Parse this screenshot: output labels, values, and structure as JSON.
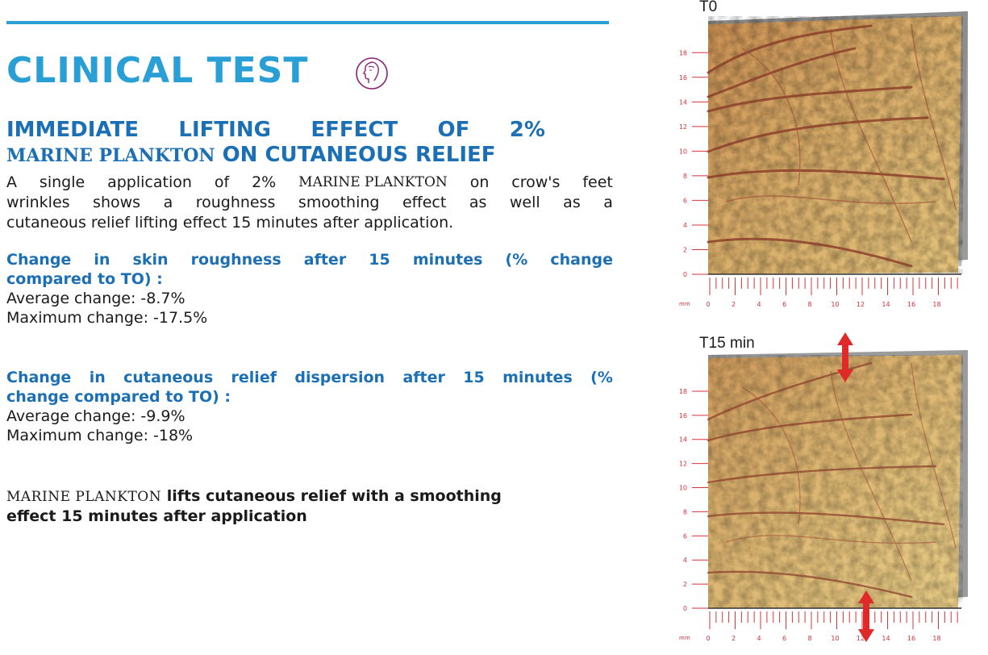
{
  "header": {
    "title": "CLINICAL TEST",
    "icon": "face-profile-icon",
    "accent_color": "#2a9fd6"
  },
  "subtitle": {
    "line1_words": [
      "IMMEDIATE",
      "LIFTING",
      "EFFECT",
      "OF",
      "2%"
    ],
    "line2_brand": "MARINE PLANKTON",
    "line2_rest": "ON CUTANEOUS RELIEF"
  },
  "intro": {
    "line1_words": [
      "A",
      "single",
      "application",
      "of",
      "2%",
      "MARINE PLANKTON",
      "on",
      "crow's",
      "feet"
    ],
    "line2_words": [
      "wrinkles",
      "shows",
      "a",
      "roughness",
      "smoothing",
      "effect",
      "as",
      "well",
      "as",
      "a"
    ],
    "line3": "cutaneous relief lifting effect 15 minutes after application."
  },
  "roughness": {
    "heading_line1_words": [
      "Change",
      "in",
      "skin",
      "roughness",
      "after",
      "15",
      "minutes",
      "(%",
      "change"
    ],
    "heading_line2": "compared to TO) :",
    "average": "Average change: -8.7%",
    "maximum": "Maximum change: -17.5%"
  },
  "dispersion": {
    "heading_line1_words": [
      "Change",
      "in",
      "cutaneous",
      "relief",
      "dispersion",
      "after",
      "15",
      "minutes",
      "(%"
    ],
    "heading_line2": "change compared to TO) :",
    "average": "Average change: -9.9%",
    "maximum": "Maximum change: -18%"
  },
  "conclusion": {
    "brand": "MARINE PLANKTON",
    "line1_rest": "lifts cutaneous relief with a smoothing",
    "line2": "effect 15 minutes after application"
  },
  "images": {
    "before_label": "T0",
    "after_label": "T15 min",
    "y_ticks": [
      "18",
      "16",
      "14",
      "12",
      "10",
      "8",
      "6",
      "4",
      "2",
      "0"
    ],
    "x_ticks": [
      "0",
      "2",
      "4",
      "6",
      "8",
      "10",
      "12",
      "14",
      "16",
      "18"
    ],
    "x_unit": "mm",
    "tick_color": "#d8323a",
    "arrow_color": "#e02a2a"
  }
}
